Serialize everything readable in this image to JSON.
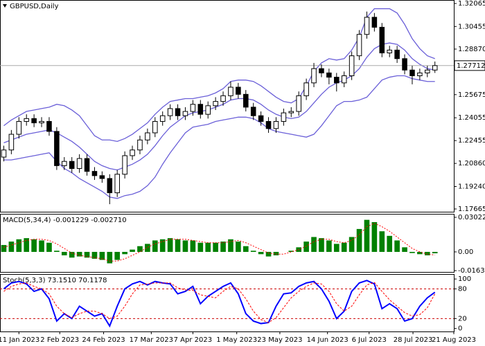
{
  "chart_data": [
    {
      "type": "candlestick",
      "title": "GBPUSD,Daily",
      "open": [
        1.213,
        1.218,
        1.229,
        1.238,
        1.24,
        1.237,
        1.238,
        1.231,
        1.207,
        1.21,
        1.205,
        1.212,
        1.203,
        1.2,
        1.198,
        1.188,
        1.201,
        1.214,
        1.218,
        1.225,
        1.23,
        1.238,
        1.242,
        1.247,
        1.242,
        1.245,
        1.25,
        1.243,
        1.249,
        1.252,
        1.256,
        1.262,
        1.257,
        1.248,
        1.242,
        1.238,
        1.233,
        1.238,
        1.244,
        1.245,
        1.256,
        1.265,
        1.275,
        1.272,
        1.269,
        1.265,
        1.27,
        1.284,
        1.299,
        1.311,
        1.304,
        1.286,
        1.288,
        1.282,
        1.274,
        1.27,
        1.272,
        1.274
      ],
      "high": [
        1.221,
        1.232,
        1.241,
        1.243,
        1.243,
        1.241,
        1.241,
        1.234,
        1.213,
        1.213,
        1.215,
        1.215,
        1.206,
        1.203,
        1.201,
        1.204,
        1.217,
        1.221,
        1.228,
        1.233,
        1.241,
        1.245,
        1.25,
        1.25,
        1.248,
        1.253,
        1.253,
        1.252,
        1.255,
        1.259,
        1.266,
        1.265,
        1.26,
        1.251,
        1.245,
        1.241,
        1.241,
        1.247,
        1.248,
        1.259,
        1.268,
        1.279,
        1.278,
        1.275,
        1.272,
        1.273,
        1.287,
        1.302,
        1.315,
        1.314,
        1.307,
        1.291,
        1.291,
        1.285,
        1.277,
        1.275,
        1.277,
        1.28
      ],
      "low": [
        1.21,
        1.215,
        1.226,
        1.235,
        1.234,
        1.234,
        1.228,
        1.204,
        1.204,
        1.202,
        1.202,
        1.2,
        1.197,
        1.195,
        1.18,
        1.185,
        1.198,
        1.211,
        1.215,
        1.222,
        1.227,
        1.235,
        1.239,
        1.239,
        1.239,
        1.242,
        1.24,
        1.24,
        1.246,
        1.249,
        1.253,
        1.254,
        1.245,
        1.239,
        1.235,
        1.23,
        1.23,
        1.235,
        1.241,
        1.242,
        1.253,
        1.262,
        1.269,
        1.264,
        1.259,
        1.262,
        1.267,
        1.281,
        1.296,
        1.301,
        1.283,
        1.283,
        1.279,
        1.271,
        1.264,
        1.267,
        1.269,
        1.272
      ],
      "close": [
        1.218,
        1.229,
        1.238,
        1.24,
        1.237,
        1.238,
        1.231,
        1.207,
        1.21,
        1.205,
        1.212,
        1.203,
        1.2,
        1.198,
        1.188,
        1.201,
        1.214,
        1.218,
        1.225,
        1.23,
        1.238,
        1.242,
        1.247,
        1.242,
        1.245,
        1.25,
        1.243,
        1.249,
        1.252,
        1.256,
        1.262,
        1.257,
        1.248,
        1.242,
        1.238,
        1.233,
        1.238,
        1.244,
        1.245,
        1.256,
        1.265,
        1.275,
        1.272,
        1.269,
        1.265,
        1.27,
        1.284,
        1.299,
        1.311,
        1.304,
        1.286,
        1.288,
        1.282,
        1.274,
        1.27,
        1.272,
        1.274,
        1.27712
      ],
      "bands": {
        "color": "#6a5fd8",
        "upper": [
          1.235,
          1.239,
          1.242,
          1.245,
          1.246,
          1.247,
          1.248,
          1.25,
          1.249,
          1.246,
          1.242,
          1.235,
          1.228,
          1.225,
          1.225,
          1.224,
          1.226,
          1.229,
          1.233,
          1.237,
          1.243,
          1.248,
          1.252,
          1.253,
          1.254,
          1.254,
          1.255,
          1.256,
          1.258,
          1.261,
          1.266,
          1.267,
          1.267,
          1.266,
          1.263,
          1.259,
          1.255,
          1.252,
          1.251,
          1.254,
          1.263,
          1.273,
          1.279,
          1.282,
          1.281,
          1.282,
          1.288,
          1.297,
          1.311,
          1.317,
          1.317,
          1.317,
          1.314,
          1.306,
          1.296,
          1.289,
          1.284,
          1.282
        ],
        "middle": [
          1.223,
          1.225,
          1.227,
          1.229,
          1.23,
          1.231,
          1.232,
          1.23,
          1.227,
          1.224,
          1.22,
          1.215,
          1.21,
          1.207,
          1.205,
          1.204,
          1.206,
          1.208,
          1.211,
          1.215,
          1.221,
          1.228,
          1.234,
          1.238,
          1.242,
          1.244,
          1.245,
          1.246,
          1.248,
          1.25,
          1.253,
          1.254,
          1.254,
          1.253,
          1.25,
          1.246,
          1.243,
          1.241,
          1.24,
          1.241,
          1.245,
          1.251,
          1.257,
          1.262,
          1.265,
          1.267,
          1.27,
          1.275,
          1.283,
          1.289,
          1.292,
          1.293,
          1.292,
          1.288,
          1.282,
          1.278,
          1.275,
          1.274
        ],
        "lower": [
          1.211,
          1.211,
          1.212,
          1.213,
          1.214,
          1.215,
          1.216,
          1.21,
          1.205,
          1.202,
          1.198,
          1.195,
          1.192,
          1.189,
          1.185,
          1.184,
          1.186,
          1.187,
          1.189,
          1.193,
          1.199,
          1.208,
          1.216,
          1.223,
          1.23,
          1.234,
          1.235,
          1.236,
          1.238,
          1.239,
          1.24,
          1.241,
          1.241,
          1.24,
          1.237,
          1.233,
          1.231,
          1.23,
          1.229,
          1.228,
          1.227,
          1.229,
          1.235,
          1.242,
          1.249,
          1.252,
          1.252,
          1.253,
          1.255,
          1.261,
          1.267,
          1.269,
          1.27,
          1.27,
          1.268,
          1.267,
          1.266,
          1.266
        ]
      },
      "current_price": 1.27712,
      "ylim": [
        1.1747,
        1.3231
      ],
      "yticks": [
        1.32065,
        1.30455,
        {
          "value": 1.2887,
          "label": "1.28870"
        },
        1.25675,
        1.24055,
        1.22455,
        {
          "value": 1.2086,
          "label": "1.20860"
        },
        {
          "value": 1.1924,
          "label": "1.19240"
        },
        1.17665
      ]
    },
    {
      "type": "bar",
      "title": "MACD(5,34,4) -0.001229 -0.002710",
      "series": [
        {
          "color": "#008000",
          "values": [
            0.006,
            0.009,
            0.011,
            0.012,
            0.011,
            0.01,
            0.008,
            0.001,
            -0.003,
            -0.005,
            -0.004,
            -0.005,
            -0.006,
            -0.007,
            -0.01,
            -0.007,
            -0.002,
            0.002,
            0.005,
            0.007,
            0.01,
            0.011,
            0.012,
            0.011,
            0.01,
            0.01,
            0.008,
            0.008,
            0.008,
            0.009,
            0.011,
            0.009,
            0.005,
            0.001,
            -0.002,
            -0.004,
            -0.003,
            0.0,
            0.001,
            0.004,
            0.009,
            0.013,
            0.012,
            0.01,
            0.007,
            0.008,
            0.013,
            0.02,
            0.028,
            0.026,
            0.018,
            0.014,
            0.01,
            0.004,
            -0.001,
            -0.002,
            -0.003,
            -0.001229
          ]
        },
        {
          "color": "#ff0000",
          "values": [
            0.004,
            0.006,
            0.008,
            0.01,
            0.011,
            0.011,
            0.01,
            0.007,
            0.003,
            -0.001,
            -0.003,
            -0.004,
            -0.005,
            -0.006,
            -0.008,
            -0.008,
            -0.006,
            -0.003,
            0.0,
            0.004,
            0.007,
            0.009,
            0.011,
            0.011,
            0.011,
            0.01,
            0.009,
            0.008,
            0.008,
            0.008,
            0.009,
            0.01,
            0.008,
            0.005,
            0.002,
            -0.001,
            -0.002,
            -0.002,
            0.0,
            0.002,
            0.005,
            0.009,
            0.011,
            0.011,
            0.009,
            0.008,
            0.01,
            0.015,
            0.022,
            0.025,
            0.022,
            0.018,
            0.013,
            0.008,
            0.003,
            0.0,
            -0.002,
            -0.00271
          ]
        }
      ],
      "ylim": [
        -0.01753,
        0.03324
      ],
      "yticks": [
        0.03022,
        {
          "value": 0,
          "label": "0.00"
        },
        -0.016393
      ]
    },
    {
      "type": "line",
      "title": "Stoch(5,3,3) 73.1510 70.1178",
      "series": [
        {
          "color": "#0000ff",
          "values": [
            80,
            92,
            95,
            90,
            75,
            80,
            60,
            15,
            30,
            20,
            45,
            35,
            25,
            30,
            5,
            45,
            80,
            90,
            95,
            88,
            95,
            92,
            90,
            70,
            75,
            85,
            50,
            65,
            75,
            85,
            92,
            70,
            30,
            15,
            10,
            12,
            45,
            70,
            72,
            85,
            92,
            95,
            80,
            55,
            20,
            35,
            75,
            92,
            97,
            90,
            40,
            50,
            40,
            15,
            20,
            45,
            62,
            73.151
          ]
        },
        {
          "color": "#ff0000",
          "values": [
            75,
            85,
            90,
            92,
            85,
            80,
            70,
            45,
            30,
            22,
            30,
            35,
            35,
            30,
            20,
            25,
            45,
            70,
            88,
            90,
            92,
            92,
            92,
            82,
            78,
            77,
            68,
            65,
            62,
            75,
            85,
            80,
            60,
            35,
            18,
            12,
            22,
            42,
            62,
            75,
            85,
            92,
            90,
            75,
            50,
            35,
            45,
            68,
            88,
            93,
            75,
            58,
            45,
            32,
            25,
            28,
            42,
            70.1178
          ]
        }
      ],
      "levels": [
        80,
        20
      ],
      "level_color": "#cc0000",
      "ylim": [
        -6,
        110
      ],
      "yticks": [
        100,
        80,
        20,
        0
      ],
      "xlim": [
        -0.5,
        59.5
      ],
      "xticks": [
        {
          "value": 2.0,
          "label": "11 Jan 2023"
        },
        {
          "value": 7.4,
          "label": "2 Feb 2023"
        },
        {
          "value": 13.2,
          "label": "24 Feb 2023"
        },
        {
          "value": 19.5,
          "label": "17 Mar 2023"
        },
        {
          "value": 25.0,
          "label": "7 Apr 2023"
        },
        {
          "value": 30.8,
          "label": "1 May 2023"
        },
        {
          "value": 36.5,
          "label": "23 May 2023"
        },
        {
          "value": 42.8,
          "label": "14 Jun 2023"
        },
        {
          "value": 48.3,
          "label": "6 Jul 2023"
        },
        {
          "value": 54.1,
          "label": "28 Jul 2023"
        },
        {
          "value": 59.5,
          "label": "21 Aug 2023"
        }
      ]
    }
  ]
}
